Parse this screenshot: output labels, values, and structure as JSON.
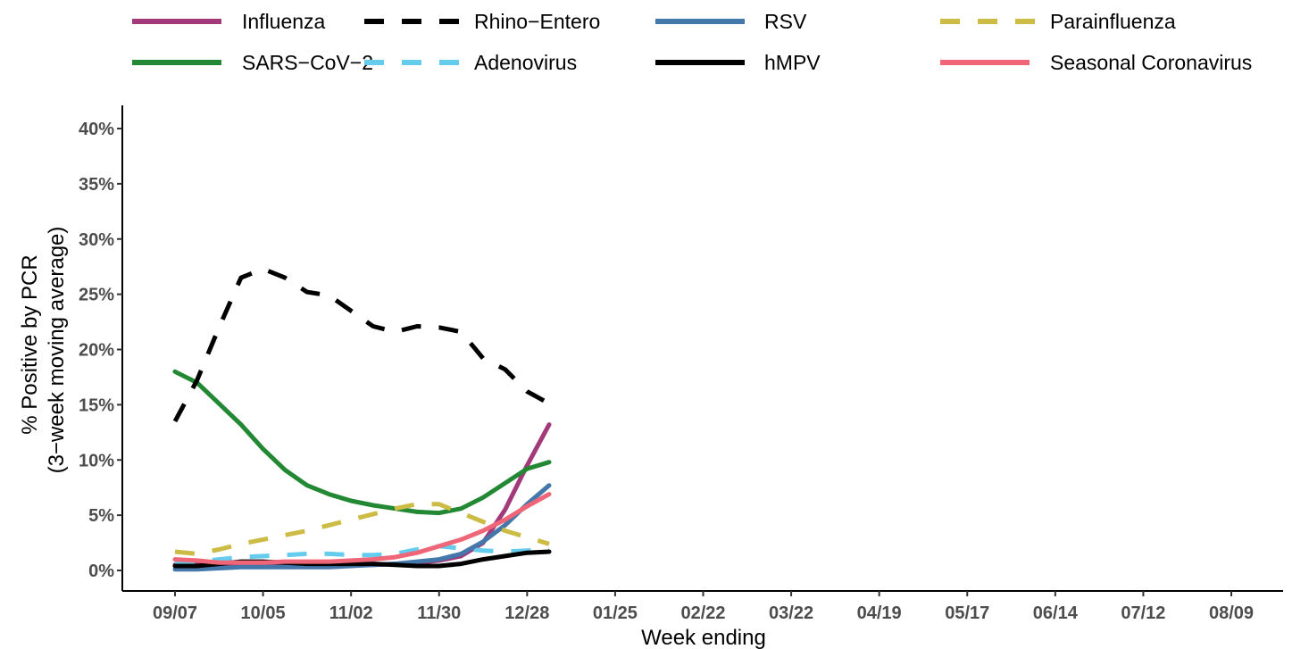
{
  "chart_data": {
    "type": "line",
    "xlabel": "Week ending",
    "ylabel_line1": "% Positive by PCR",
    "ylabel_line2": "(3−week moving average)",
    "ylim": [
      0,
      40
    ],
    "yticks": [
      0,
      5,
      10,
      15,
      20,
      25,
      30,
      35,
      40
    ],
    "ytick_labels": [
      "0%",
      "5%",
      "10%",
      "15%",
      "20%",
      "25%",
      "30%",
      "35%",
      "40%"
    ],
    "xtick_labels": [
      "09/07",
      "10/05",
      "11/02",
      "11/30",
      "12/28",
      "01/25",
      "02/22",
      "03/22",
      "04/19",
      "05/17",
      "06/14",
      "07/12",
      "08/09"
    ],
    "xtick_weeks": [
      0,
      4,
      8,
      12,
      16,
      20,
      24,
      28,
      32,
      36,
      40,
      44,
      48
    ],
    "x_range_weeks": [
      -2.4,
      50.9
    ],
    "grid": false,
    "legend_position": "top",
    "series": [
      {
        "name": "Influenza",
        "color": "#a2397a",
        "dash": "solid",
        "weeks": [
          0,
          1,
          2,
          3,
          4,
          5,
          6,
          7,
          8,
          9,
          10,
          11,
          12,
          13,
          14,
          15,
          16,
          17
        ],
        "values": [
          0.5,
          0.5,
          0.5,
          0.5,
          0.5,
          0.5,
          0.5,
          0.5,
          0.5,
          0.5,
          0.6,
          0.7,
          0.9,
          1.3,
          2.5,
          5.5,
          9.5,
          13.2
        ]
      },
      {
        "name": "SARS−CoV−2",
        "color": "#228833",
        "dash": "solid",
        "weeks": [
          0,
          1,
          2,
          3,
          4,
          5,
          6,
          7,
          8,
          9,
          10,
          11,
          12,
          13,
          14,
          15,
          16,
          17
        ],
        "values": [
          18.0,
          17.0,
          15.1,
          13.2,
          11.0,
          9.1,
          7.7,
          6.9,
          6.3,
          5.9,
          5.6,
          5.3,
          5.2,
          5.6,
          6.6,
          7.9,
          9.2,
          9.8
        ]
      },
      {
        "name": "Rhino−Entero",
        "color": "#000000",
        "dash": "dashed",
        "weeks": [
          0,
          1,
          2,
          3,
          4,
          5,
          6,
          7,
          8,
          9,
          10,
          11,
          12,
          13,
          14,
          15,
          16,
          17
        ],
        "values": [
          13.5,
          17.2,
          22.0,
          26.5,
          27.3,
          26.5,
          25.2,
          24.9,
          23.5,
          22.1,
          21.6,
          22.1,
          22.0,
          21.6,
          19.2,
          18.2,
          16.2,
          15.1
        ]
      },
      {
        "name": "Adenovirus",
        "color": "#66ccee",
        "dash": "dashed",
        "weeks": [
          0,
          1,
          2,
          3,
          4,
          5,
          6,
          7,
          8,
          9,
          10,
          11,
          12,
          13,
          14,
          15,
          16,
          17
        ],
        "values": [
          0.6,
          0.8,
          1.0,
          1.2,
          1.3,
          1.4,
          1.5,
          1.5,
          1.4,
          1.4,
          1.5,
          1.9,
          2.2,
          2.0,
          1.8,
          1.7,
          1.8,
          1.9
        ]
      },
      {
        "name": "RSV",
        "color": "#4477aa",
        "dash": "solid",
        "weeks": [
          0,
          1,
          2,
          3,
          4,
          5,
          6,
          7,
          8,
          9,
          10,
          11,
          12,
          13,
          14,
          15,
          16,
          17
        ],
        "values": [
          0.1,
          0.1,
          0.2,
          0.3,
          0.3,
          0.3,
          0.3,
          0.3,
          0.4,
          0.5,
          0.6,
          0.8,
          1.0,
          1.5,
          2.6,
          4.1,
          6.0,
          7.7
        ]
      },
      {
        "name": "hMPV",
        "color": "#000000",
        "dash": "solid",
        "weeks": [
          0,
          1,
          2,
          3,
          4,
          5,
          6,
          7,
          8,
          9,
          10,
          11,
          12,
          13,
          14,
          15,
          16,
          17
        ],
        "values": [
          0.4,
          0.4,
          0.6,
          0.8,
          0.8,
          0.7,
          0.6,
          0.6,
          0.6,
          0.6,
          0.5,
          0.4,
          0.4,
          0.6,
          1.0,
          1.3,
          1.6,
          1.7
        ]
      },
      {
        "name": "Parainfluenza",
        "color": "#ccbb44",
        "dash": "dashed",
        "weeks": [
          0,
          1,
          2,
          3,
          4,
          5,
          6,
          7,
          8,
          9,
          10,
          11,
          12,
          13,
          14,
          15,
          16,
          17
        ],
        "values": [
          1.7,
          1.5,
          1.9,
          2.4,
          2.8,
          3.2,
          3.6,
          4.1,
          4.6,
          5.1,
          5.6,
          6.0,
          6.0,
          5.2,
          4.4,
          3.6,
          3.0,
          2.4
        ]
      },
      {
        "name": "Seasonal Coronavirus",
        "color": "#ee6677",
        "dash": "solid",
        "weeks": [
          0,
          1,
          2,
          3,
          4,
          5,
          6,
          7,
          8,
          9,
          10,
          11,
          12,
          13,
          14,
          15,
          16,
          17
        ],
        "values": [
          1.0,
          0.9,
          0.7,
          0.7,
          0.7,
          0.8,
          0.8,
          0.8,
          0.9,
          1.0,
          1.2,
          1.6,
          2.2,
          2.8,
          3.6,
          4.6,
          5.8,
          6.9
        ]
      }
    ]
  }
}
